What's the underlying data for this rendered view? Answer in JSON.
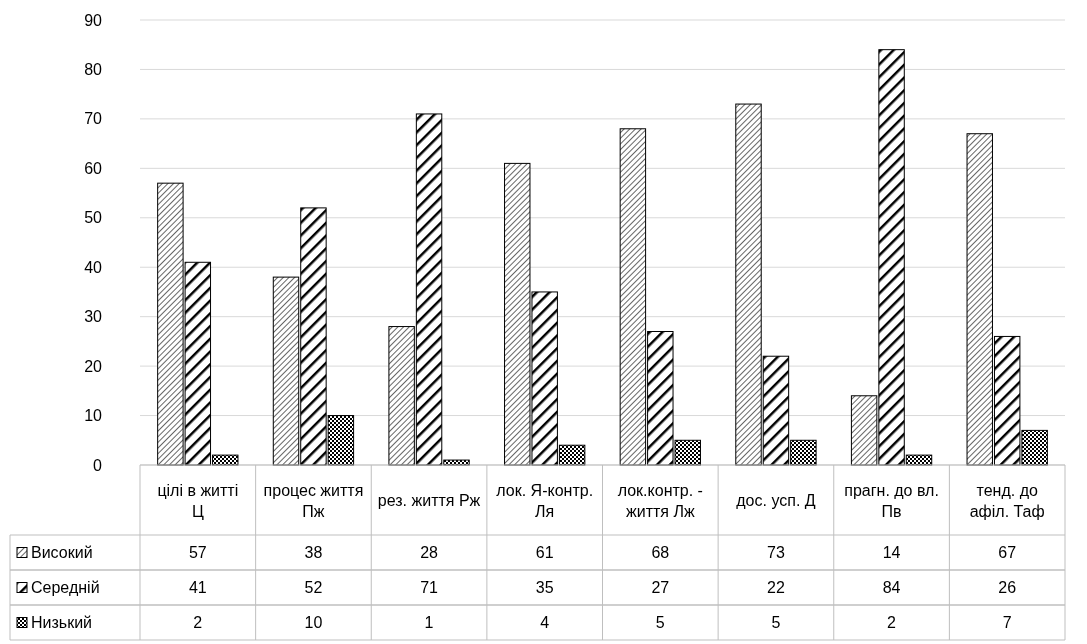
{
  "chart_data": {
    "type": "bar",
    "categories": [
      "цілі в житті Ц",
      "процес життя Пж",
      "рез. життя Рж",
      "лок. Я-контр. Ля",
      "лок.контр. -життя Лж",
      "дос. усп. Д",
      "прагн. до вл. Пв",
      "тенд. до афіл. Таф"
    ],
    "series": [
      {
        "name": "Високий",
        "color": "#000000",
        "values": [
          57,
          38,
          28,
          61,
          68,
          73,
          14,
          67
        ]
      },
      {
        "name": "Середній",
        "color": "#000000",
        "values": [
          41,
          52,
          71,
          35,
          27,
          22,
          84,
          26
        ]
      },
      {
        "name": "Низький",
        "color": "#000000",
        "values": [
          2,
          10,
          1,
          4,
          5,
          5,
          2,
          7
        ]
      }
    ],
    "ylim": [
      0,
      90
    ],
    "yticks": [
      0,
      10,
      20,
      30,
      40,
      50,
      60,
      70,
      80,
      90
    ],
    "grid": "y",
    "legend": "bottom",
    "data_labels": true
  }
}
